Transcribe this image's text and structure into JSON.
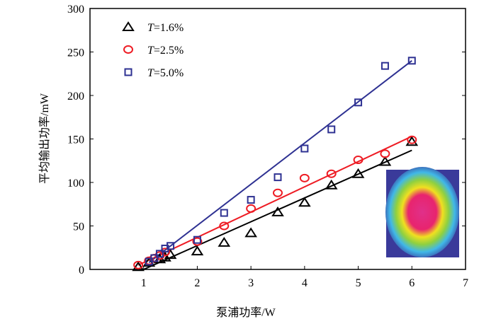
{
  "chart_data": {
    "type": "scatter",
    "title": "",
    "xlabel": "泵浦功率/W",
    "ylabel": "平均输出功率/mW",
    "xlim": [
      0,
      7
    ],
    "ylim": [
      0,
      300
    ],
    "xticks": [
      1,
      2,
      3,
      4,
      5,
      6,
      7
    ],
    "yticks": [
      0,
      50,
      100,
      150,
      200,
      250,
      300
    ],
    "legend_position": "top-left",
    "series": [
      {
        "name": "T=1.6%",
        "label_var": "T",
        "label_rest": "=1.6%",
        "marker": "triangle",
        "color": "#000000",
        "x": [
          0.9,
          1.1,
          1.3,
          1.4,
          1.5,
          2,
          2.5,
          3,
          3.5,
          4,
          4.5,
          5,
          5.5,
          6
        ],
        "y": [
          3,
          8,
          12,
          14,
          17,
          21,
          31,
          42,
          66,
          77,
          97,
          110,
          124,
          147
        ],
        "fit": [
          [
            1.0,
            0
          ],
          [
            6,
            137
          ]
        ]
      },
      {
        "name": "T=2.5%",
        "label_var": "T",
        "label_rest": "=2.5%",
        "marker": "circle",
        "color": "#ee1c24",
        "x": [
          0.9,
          1.1,
          1.2,
          1.3,
          1.4,
          2,
          2.5,
          3,
          3.5,
          4,
          4.5,
          5,
          5.5,
          6
        ],
        "y": [
          5,
          10,
          13,
          16,
          20,
          32,
          50,
          70,
          88,
          105,
          110,
          126,
          133,
          149
        ],
        "fit": [
          [
            0.9,
            5
          ],
          [
            6,
            153
          ]
        ]
      },
      {
        "name": "T=5.0%",
        "label_var": "T",
        "label_rest": "=5.0%",
        "marker": "square",
        "color": "#2e3192",
        "x": [
          1.1,
          1.2,
          1.3,
          1.4,
          1.5,
          2,
          2.5,
          3,
          3.5,
          4,
          4.5,
          5,
          5.5,
          6
        ],
        "y": [
          9,
          13,
          18,
          24,
          27,
          34,
          65,
          80,
          106,
          139,
          161,
          192,
          234,
          240
        ],
        "fit": [
          [
            1.1,
            8
          ],
          [
            6,
            240
          ]
        ]
      }
    ]
  }
}
